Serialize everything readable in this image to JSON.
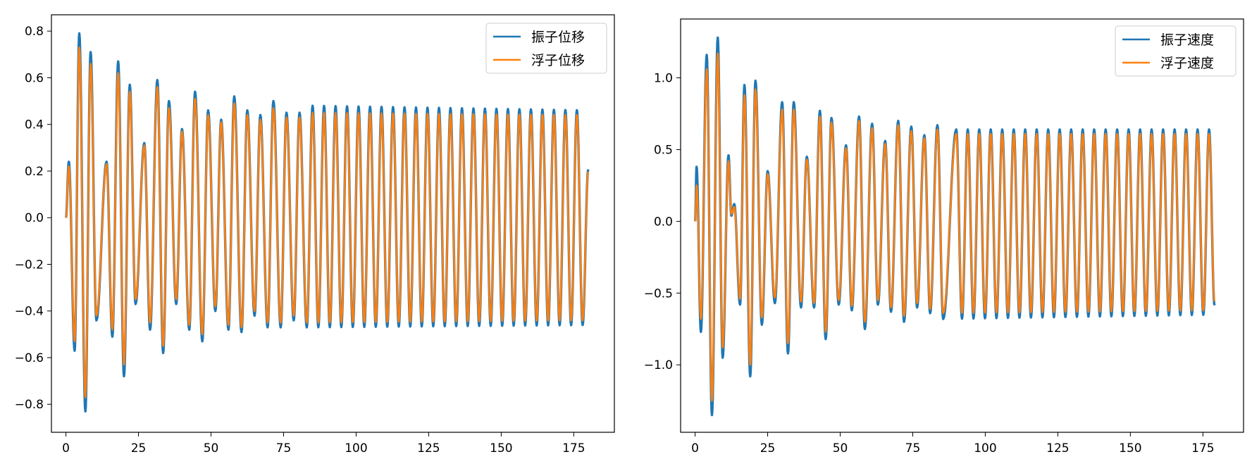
{
  "chart_data": [
    {
      "type": "line",
      "title": "",
      "xlabel": "",
      "ylabel": "",
      "xlim": [
        -5,
        189
      ],
      "ylim": [
        -0.92,
        0.87
      ],
      "xticks": [
        0,
        25,
        50,
        75,
        100,
        125,
        150,
        175
      ],
      "yticks": [
        -0.8,
        -0.6,
        -0.4,
        -0.2,
        0.0,
        0.2,
        0.4,
        0.6,
        0.8
      ],
      "ytick_labels": [
        "−0.8",
        "−0.6",
        "−0.4",
        "−0.2",
        "0.0",
        "0.2",
        "0.4",
        "0.6",
        "0.8"
      ],
      "xtick_labels": [
        "0",
        "25",
        "50",
        "75",
        "100",
        "125",
        "150",
        "175"
      ],
      "grid": false,
      "legend_position": "top-right",
      "x_range": [
        0,
        180
      ],
      "period": 3.96,
      "series": [
        {
          "name": "振子位移",
          "color": "#1f77b4",
          "peaks": [
            [
              1.0,
              0.24
            ],
            [
              4.6,
              0.79
            ],
            [
              8.5,
              0.71
            ],
            [
              14.0,
              0.24
            ],
            [
              18.0,
              0.67
            ],
            [
              22.0,
              0.57
            ],
            [
              27.0,
              0.32
            ],
            [
              31.5,
              0.59
            ],
            [
              35.5,
              0.5
            ],
            [
              40.0,
              0.38
            ],
            [
              44.5,
              0.54
            ],
            [
              49.0,
              0.46
            ],
            [
              53.5,
              0.42
            ],
            [
              58.0,
              0.52
            ],
            [
              62.5,
              0.46
            ],
            [
              67.0,
              0.44
            ],
            [
              71.5,
              0.5
            ],
            [
              76.0,
              0.45
            ],
            [
              80.5,
              0.45
            ],
            [
              85.0,
              0.48
            ],
            [
              180.0,
              0.46
            ]
          ],
          "troughs": [
            [
              3.0,
              -0.57
            ],
            [
              6.7,
              -0.83
            ],
            [
              10.5,
              -0.44
            ],
            [
              16.0,
              -0.51
            ],
            [
              20.0,
              -0.68
            ],
            [
              24.0,
              -0.37
            ],
            [
              29.0,
              -0.48
            ],
            [
              33.5,
              -0.58
            ],
            [
              38.0,
              -0.37
            ],
            [
              42.5,
              -0.48
            ],
            [
              47.0,
              -0.53
            ],
            [
              51.5,
              -0.4
            ],
            [
              56.0,
              -0.48
            ],
            [
              60.5,
              -0.49
            ],
            [
              65.0,
              -0.42
            ],
            [
              69.5,
              -0.47
            ],
            [
              74.0,
              -0.47
            ],
            [
              78.5,
              -0.44
            ],
            [
              83.0,
              -0.47
            ],
            [
              180.0,
              -0.46
            ]
          ]
        },
        {
          "name": "浮子位移",
          "color": "#ff7f0e",
          "peaks": [
            [
              1.0,
              0.22
            ],
            [
              4.6,
              0.73
            ],
            [
              8.5,
              0.66
            ],
            [
              14.0,
              0.23
            ],
            [
              18.0,
              0.62
            ],
            [
              22.0,
              0.54
            ],
            [
              27.0,
              0.31
            ],
            [
              31.5,
              0.56
            ],
            [
              35.5,
              0.47
            ],
            [
              40.0,
              0.37
            ],
            [
              44.5,
              0.51
            ],
            [
              49.0,
              0.44
            ],
            [
              53.5,
              0.41
            ],
            [
              58.0,
              0.49
            ],
            [
              62.5,
              0.44
            ],
            [
              67.0,
              0.42
            ],
            [
              71.5,
              0.47
            ],
            [
              76.0,
              0.43
            ],
            [
              80.5,
              0.43
            ],
            [
              85.0,
              0.45
            ],
            [
              180.0,
              0.44
            ]
          ],
          "troughs": [
            [
              3.0,
              -0.53
            ],
            [
              6.7,
              -0.77
            ],
            [
              10.5,
              -0.42
            ],
            [
              16.0,
              -0.48
            ],
            [
              20.0,
              -0.63
            ],
            [
              24.0,
              -0.35
            ],
            [
              29.0,
              -0.45
            ],
            [
              33.5,
              -0.55
            ],
            [
              38.0,
              -0.35
            ],
            [
              42.5,
              -0.46
            ],
            [
              47.0,
              -0.5
            ],
            [
              51.5,
              -0.38
            ],
            [
              56.0,
              -0.46
            ],
            [
              60.5,
              -0.47
            ],
            [
              65.0,
              -0.4
            ],
            [
              69.5,
              -0.45
            ],
            [
              74.0,
              -0.45
            ],
            [
              78.5,
              -0.42
            ],
            [
              83.0,
              -0.45
            ],
            [
              180.0,
              -0.44
            ]
          ]
        }
      ]
    },
    {
      "type": "line",
      "title": "",
      "xlabel": "",
      "ylabel": "",
      "xlim": [
        -5,
        189
      ],
      "ylim": [
        -1.47,
        1.41
      ],
      "xticks": [
        0,
        25,
        50,
        75,
        100,
        125,
        150,
        175
      ],
      "yticks": [
        -1.0,
        -0.5,
        0.0,
        0.5,
        1.0
      ],
      "ytick_labels": [
        "−1.0",
        "−0.5",
        "0.0",
        "0.5",
        "1.0"
      ],
      "xtick_labels": [
        "0",
        "25",
        "50",
        "75",
        "100",
        "125",
        "150",
        "175"
      ],
      "grid": false,
      "legend_position": "top-right",
      "x_range": [
        0,
        179
      ],
      "period": 3.96,
      "series": [
        {
          "name": "振子速度",
          "color": "#1f77b4",
          "peaks": [
            [
              0.5,
              0.38
            ],
            [
              4.0,
              1.16
            ],
            [
              7.8,
              1.28
            ],
            [
              11.5,
              0.46
            ],
            [
              13.5,
              0.12
            ],
            [
              17.0,
              0.95
            ],
            [
              20.8,
              0.98
            ],
            [
              25.0,
              0.35
            ],
            [
              30.0,
              0.83
            ],
            [
              34.0,
              0.83
            ],
            [
              38.5,
              0.45
            ],
            [
              43.0,
              0.77
            ],
            [
              47.0,
              0.72
            ],
            [
              52.0,
              0.53
            ],
            [
              56.5,
              0.73
            ],
            [
              61.0,
              0.68
            ],
            [
              65.5,
              0.56
            ],
            [
              70.0,
              0.7
            ],
            [
              74.5,
              0.66
            ],
            [
              79.0,
              0.6
            ],
            [
              83.5,
              0.67
            ],
            [
              90.0,
              0.64
            ],
            [
              179.0,
              0.64
            ]
          ],
          "troughs": [
            [
              2.0,
              -0.77
            ],
            [
              5.8,
              -1.35
            ],
            [
              9.5,
              -0.95
            ],
            [
              12.5,
              0.04
            ],
            [
              15.5,
              -0.58
            ],
            [
              19.0,
              -1.08
            ],
            [
              23.0,
              -0.72
            ],
            [
              27.5,
              -0.57
            ],
            [
              32.0,
              -0.92
            ],
            [
              36.5,
              -0.6
            ],
            [
              41.0,
              -0.6
            ],
            [
              45.0,
              -0.82
            ],
            [
              49.5,
              -0.58
            ],
            [
              54.0,
              -0.62
            ],
            [
              58.5,
              -0.75
            ],
            [
              63.0,
              -0.58
            ],
            [
              67.5,
              -0.63
            ],
            [
              72.0,
              -0.7
            ],
            [
              76.5,
              -0.6
            ],
            [
              81.0,
              -0.64
            ],
            [
              85.5,
              -0.68
            ],
            [
              179.0,
              -0.65
            ]
          ]
        },
        {
          "name": "浮子速度",
          "color": "#ff7f0e",
          "peaks": [
            [
              0.5,
              0.25
            ],
            [
              4.0,
              1.06
            ],
            [
              7.8,
              1.17
            ],
            [
              11.5,
              0.42
            ],
            [
              13.5,
              0.1
            ],
            [
              17.0,
              0.88
            ],
            [
              20.8,
              0.92
            ],
            [
              25.0,
              0.33
            ],
            [
              30.0,
              0.78
            ],
            [
              34.0,
              0.78
            ],
            [
              38.5,
              0.43
            ],
            [
              43.0,
              0.73
            ],
            [
              47.0,
              0.69
            ],
            [
              52.0,
              0.51
            ],
            [
              56.5,
              0.7
            ],
            [
              61.0,
              0.65
            ],
            [
              65.5,
              0.54
            ],
            [
              70.0,
              0.67
            ],
            [
              74.5,
              0.63
            ],
            [
              79.0,
              0.58
            ],
            [
              83.5,
              0.64
            ],
            [
              90.0,
              0.61
            ],
            [
              179.0,
              0.61
            ]
          ],
          "troughs": [
            [
              2.0,
              -0.68
            ],
            [
              5.8,
              -1.25
            ],
            [
              9.5,
              -0.88
            ],
            [
              12.5,
              0.05
            ],
            [
              15.5,
              -0.54
            ],
            [
              19.0,
              -1.0
            ],
            [
              23.0,
              -0.67
            ],
            [
              27.5,
              -0.53
            ],
            [
              32.0,
              -0.85
            ],
            [
              36.5,
              -0.56
            ],
            [
              41.0,
              -0.57
            ],
            [
              45.0,
              -0.77
            ],
            [
              49.5,
              -0.55
            ],
            [
              54.0,
              -0.59
            ],
            [
              58.5,
              -0.7
            ],
            [
              63.0,
              -0.55
            ],
            [
              67.5,
              -0.6
            ],
            [
              72.0,
              -0.66
            ],
            [
              76.5,
              -0.57
            ],
            [
              81.0,
              -0.61
            ],
            [
              85.5,
              -0.64
            ],
            [
              179.0,
              -0.62
            ]
          ]
        }
      ]
    }
  ]
}
